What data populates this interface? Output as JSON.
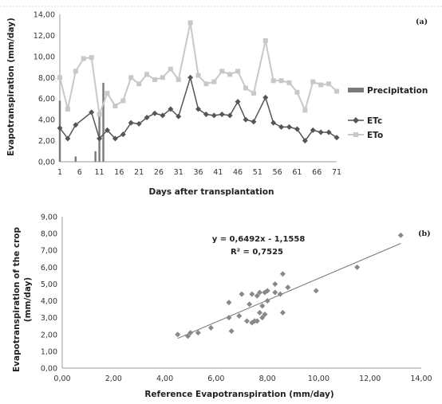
{
  "colors": {
    "precipitation": "#7a7a7a",
    "etc": "#555555",
    "eto": "#c8c8c8",
    "scatter": "#888888",
    "axis": "#999999"
  },
  "chart_data": [
    {
      "type": "line",
      "panel_label": "(a)",
      "xlabel": "Days after transplantation",
      "ylabel": "Evapotranspiration (mm/day)",
      "ylim": [
        0,
        14
      ],
      "xlim": [
        1,
        71
      ],
      "x_ticks": [
        "1",
        "6",
        "11",
        "16",
        "21",
        "26",
        "31",
        "36",
        "41",
        "46",
        "51",
        "56",
        "61",
        "66",
        "71"
      ],
      "y_ticks": [
        "0,00",
        "2,00",
        "4,00",
        "6,00",
        "8,00",
        "10,00",
        "12,00",
        "14,00"
      ],
      "legend_position": "right",
      "legend": [
        "Precipitation",
        "ETc",
        "ETo"
      ],
      "series": [
        {
          "name": "Precipitation",
          "kind": "bar",
          "x": [
            1,
            5,
            10,
            11,
            12
          ],
          "values": [
            5.8,
            0.5,
            1.0,
            4.6,
            7.5
          ]
        },
        {
          "name": "ETc",
          "kind": "line-diamond",
          "x": [
            1,
            3,
            5,
            9,
            11,
            13,
            15,
            17,
            19,
            21,
            23,
            25,
            27,
            29,
            31,
            34,
            36,
            38,
            40,
            42,
            44,
            46,
            48,
            50,
            53,
            55,
            57,
            59,
            61,
            63,
            65,
            67,
            69,
            71
          ],
          "values": [
            3.2,
            2.2,
            3.5,
            4.7,
            2.2,
            3.0,
            2.2,
            2.6,
            3.7,
            3.6,
            4.2,
            4.6,
            4.4,
            5.0,
            4.3,
            8.0,
            5.0,
            4.5,
            4.4,
            4.5,
            4.4,
            5.7,
            4.0,
            3.8,
            6.1,
            3.7,
            3.3,
            3.3,
            3.1,
            2.0,
            3.0,
            2.8,
            2.8,
            2.3
          ]
        },
        {
          "name": "ETo",
          "kind": "line-square",
          "x": [
            1,
            3,
            5,
            7,
            9,
            11,
            13,
            15,
            17,
            19,
            21,
            23,
            25,
            27,
            29,
            31,
            34,
            36,
            38,
            40,
            42,
            44,
            46,
            48,
            50,
            53,
            55,
            57,
            59,
            61,
            63,
            65,
            67,
            69,
            71
          ],
          "values": [
            8.0,
            5.0,
            8.6,
            9.8,
            9.9,
            4.5,
            6.5,
            5.3,
            5.8,
            8.0,
            7.4,
            8.3,
            7.8,
            8.0,
            8.8,
            7.8,
            13.2,
            8.2,
            7.4,
            7.6,
            8.6,
            8.3,
            8.6,
            7.0,
            6.5,
            11.5,
            7.7,
            7.7,
            7.5,
            6.6,
            4.9,
            7.6,
            7.3,
            7.4,
            6.7
          ]
        }
      ]
    },
    {
      "type": "scatter",
      "panel_label": "(b)",
      "xlabel": "Reference Evapotranspiration (mm/day)",
      "ylabel": [
        "Evapotranspiration of the crop",
        "(mm/day)"
      ],
      "xlim": [
        0,
        14
      ],
      "ylim": [
        0,
        9
      ],
      "x_ticks": [
        "0,00",
        "2,00",
        "4,00",
        "6,00",
        "8,00",
        "10,00",
        "12,00",
        "14,00"
      ],
      "y_ticks": [
        "0,00",
        "1,00",
        "2,00",
        "3,00",
        "4,00",
        "5,00",
        "6,00",
        "7,00",
        "8,00",
        "9,00"
      ],
      "equation": "y = 0,6492x - 1,1558",
      "r2": "R² = 0,7525",
      "trendline": {
        "slope": 0.6492,
        "intercept": -1.1558,
        "x_range": [
          4.5,
          13.2
        ]
      },
      "points": [
        [
          4.5,
          2.0
        ],
        [
          4.9,
          1.9
        ],
        [
          5.0,
          2.1
        ],
        [
          5.3,
          2.1
        ],
        [
          5.8,
          2.4
        ],
        [
          6.5,
          3.0
        ],
        [
          6.5,
          3.9
        ],
        [
          6.6,
          2.2
        ],
        [
          6.9,
          3.1
        ],
        [
          7.0,
          4.4
        ],
        [
          7.2,
          2.8
        ],
        [
          7.3,
          3.8
        ],
        [
          7.4,
          4.4
        ],
        [
          7.4,
          2.7
        ],
        [
          7.5,
          2.8
        ],
        [
          7.6,
          2.8
        ],
        [
          7.6,
          4.3
        ],
        [
          7.7,
          3.3
        ],
        [
          7.7,
          4.5
        ],
        [
          7.8,
          3.0
        ],
        [
          7.8,
          3.7
        ],
        [
          7.9,
          3.2
        ],
        [
          7.9,
          4.5
        ],
        [
          8.0,
          4.6
        ],
        [
          8.0,
          4.0
        ],
        [
          8.3,
          4.5
        ],
        [
          8.3,
          5.0
        ],
        [
          8.5,
          4.4
        ],
        [
          8.6,
          3.3
        ],
        [
          8.6,
          5.6
        ],
        [
          8.8,
          4.8
        ],
        [
          9.9,
          4.6
        ],
        [
          11.5,
          6.0
        ],
        [
          13.2,
          7.9
        ]
      ]
    }
  ]
}
